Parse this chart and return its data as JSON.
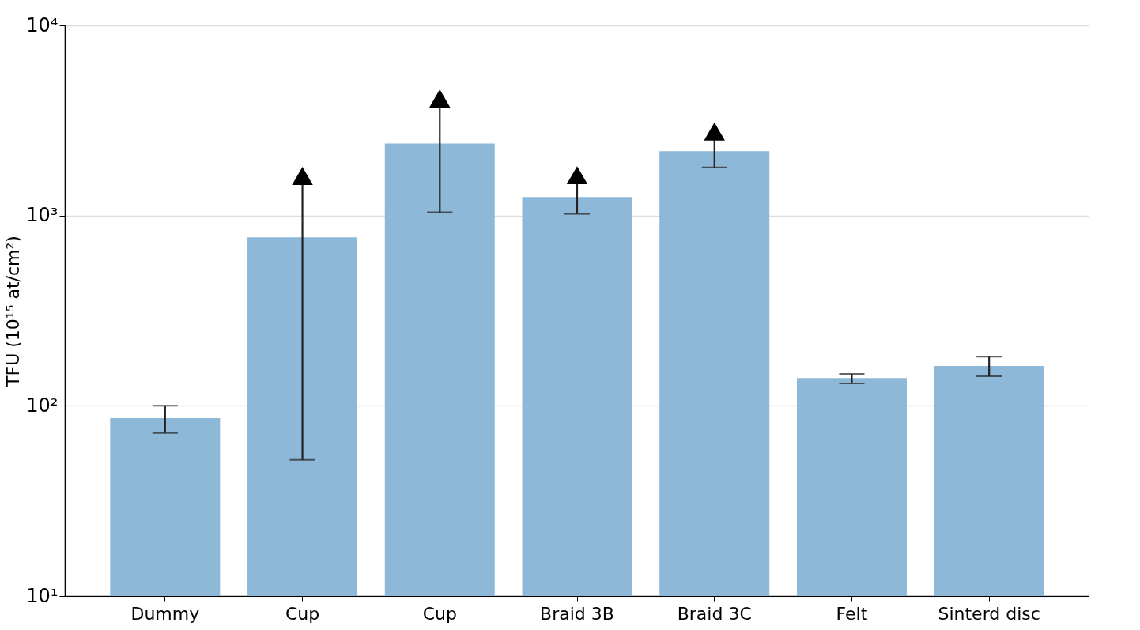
{
  "chart_data": {
    "type": "bar",
    "ylabel": "TFU (10¹⁵ at/cm²)",
    "categories": [
      "Dummy",
      "Cup",
      "Cup",
      "Braid 3B",
      "Braid 3C",
      "Felt",
      "Sinterd disc"
    ],
    "series": [
      {
        "color": "#8db8d8",
        "values": [
          86,
          768,
          2390,
          1250,
          2180,
          140,
          162
        ],
        "errors": [
          [
            72,
            100
          ],
          [
            52,
            1475
          ],
          [
            1040,
            3720
          ],
          [
            1020,
            1470
          ],
          [
            1790,
            2500
          ],
          [
            131,
            147
          ],
          [
            143,
            181
          ]
        ]
      },
      {
        "type": "scatter",
        "color": "#000000",
        "marker": "triangle",
        "values": [
          null,
          1615,
          4130,
          1630,
          2770,
          null,
          null
        ]
      }
    ],
    "log": true,
    "ylim": [
      10,
      10000
    ],
    "yticks": [
      {
        "value": 10,
        "label": "10¹"
      },
      {
        "value": 100,
        "label": "10²"
      },
      {
        "value": 1000,
        "label": "10³"
      },
      {
        "value": 10000,
        "label": "10⁴"
      }
    ],
    "grid": "y"
  }
}
